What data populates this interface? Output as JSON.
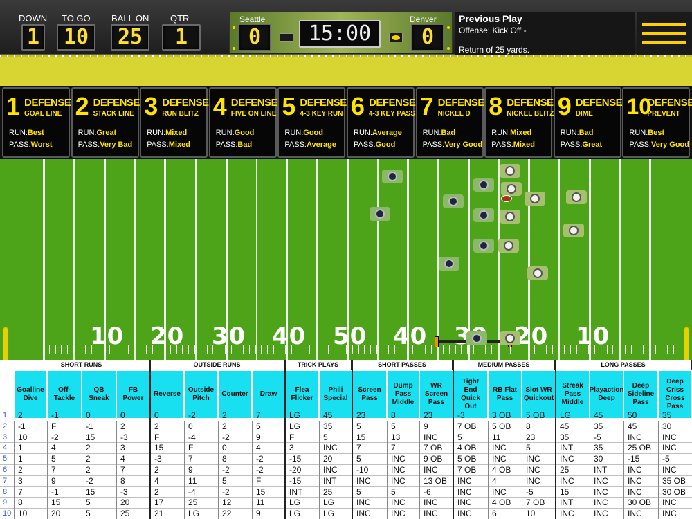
{
  "scoreboard": {
    "labels": {
      "down": "DOWN",
      "to_go": "TO GO",
      "ball_on": "BALL ON",
      "qtr": "QTR"
    },
    "values": {
      "down": "1",
      "to_go": "10",
      "ball_on": "25",
      "qtr": "1"
    },
    "home_team": "Seattle",
    "away_team": "Denver",
    "home_score": "0",
    "away_score": "0",
    "clock": "15:00"
  },
  "previous_play": {
    "title": "Previous Play",
    "line1": "Offense: Kick Off -",
    "line2": "Return of 25 yards."
  },
  "defenses": [
    {
      "num": "1",
      "title": "DEFENSE",
      "name": "GOAL LINE",
      "run_label": "RUN:",
      "run": "Best",
      "pass_label": "PASS:",
      "pass": "Worst"
    },
    {
      "num": "2",
      "title": "DEFENSE",
      "name": "STACK LINE",
      "run_label": "RUN:",
      "run": "Great",
      "pass_label": "PASS:",
      "pass": "Very Bad"
    },
    {
      "num": "3",
      "title": "DEFENSE",
      "name": "RUN BLITZ",
      "run_label": "RUN:",
      "run": "Mixed",
      "pass_label": "PASS:",
      "pass": "Mixed"
    },
    {
      "num": "4",
      "title": "DEFENSE",
      "name": "FIVE ON LINE",
      "run_label": "RUN:",
      "run": "Good",
      "pass_label": "PASS:",
      "pass": "Bad"
    },
    {
      "num": "5",
      "title": "DEFENSE",
      "name": "4-3 KEY RUN",
      "run_label": "RUN:",
      "run": "Good",
      "pass_label": "PASS:",
      "pass": "Average"
    },
    {
      "num": "6",
      "title": "DEFENSE",
      "name": "4-3 KEY PASS",
      "run_label": "RUN:",
      "run": "Average",
      "pass_label": "PASS:",
      "pass": "Good"
    },
    {
      "num": "7",
      "title": "DEFENSE",
      "name": "NICKEL D",
      "run_label": "RUN:",
      "run": "Bad",
      "pass_label": "PASS:",
      "pass": "Very Good"
    },
    {
      "num": "8",
      "title": "DEFENSE",
      "name": "NICKEL BLITZ",
      "run_label": "RUN:",
      "run": "Mixed",
      "pass_label": "PASS:",
      "pass": "Mixed"
    },
    {
      "num": "9",
      "title": "DEFENSE",
      "name": "DIME",
      "run_label": "RUN:",
      "run": "Bad",
      "pass_label": "PASS:",
      "pass": "Great"
    },
    {
      "num": "10",
      "title": "DEFENSE",
      "name": "PREVENT",
      "run_label": "RUN:",
      "run": "Best",
      "pass_label": "PASS:",
      "pass": "Very Good"
    }
  ],
  "field": {
    "yard_numbers": [
      "10",
      "20",
      "30",
      "40",
      "50",
      "40",
      "30",
      "20",
      "10"
    ]
  },
  "play_table": {
    "categories": [
      {
        "label": "SHORT RUNS",
        "span": 4
      },
      {
        "label": "OUTSIDE RUNS",
        "span": 4
      },
      {
        "label": "TRICK PLAYS",
        "span": 2
      },
      {
        "label": "SHORT PASSES",
        "span": 3
      },
      {
        "label": "MEDIUM PASSES",
        "span": 3
      },
      {
        "label": "LONG PASSES",
        "span": 4
      }
    ],
    "headers": [
      "Goalline Dive",
      "Off-Tackle",
      "QB Sneak",
      "FB Power",
      "Reverse",
      "Outside Pitch",
      "Counter",
      "Draw",
      "Flea Flicker",
      "Phili Special",
      "Screen Pass",
      "Dump Pass Middle",
      "WR Screen Pass",
      "Tight End Quick Out",
      "RB Flat Pass",
      "Slot WR Quickout",
      "Streak Pass Middle",
      "Playaction Deep",
      "Deep Sideline Pass",
      "Deep Criss Cross Pass"
    ],
    "row_numbers": [
      "1",
      "2",
      "3",
      "4",
      "5",
      "6",
      "7",
      "8",
      "9",
      "10"
    ],
    "rows": [
      [
        "2",
        "-1",
        "0",
        "0",
        "0",
        "-2",
        "2",
        "7",
        "LG",
        "45",
        "23",
        "8",
        "23",
        "-3",
        "3 OB",
        "5 OB",
        "LG",
        "45",
        "50",
        "35"
      ],
      [
        "-1",
        "F",
        "-1",
        "2",
        "2",
        "0",
        "2",
        "5",
        "LG",
        "35",
        "5",
        "5",
        "9",
        "7 OB",
        "5 OB",
        "8",
        "45",
        "35",
        "45",
        "30"
      ],
      [
        "10",
        "-2",
        "15",
        "-3",
        "F",
        "-4",
        "-2",
        "9",
        "F",
        "5",
        "15",
        "13",
        "INC",
        "5",
        "11",
        "23",
        "35",
        "-5",
        "INC",
        "INC"
      ],
      [
        "1",
        "4",
        "2",
        "3",
        "15",
        "F",
        "0",
        "4",
        "3",
        "INC",
        "7",
        "7",
        "7 OB",
        "4 OB",
        "INC",
        "5",
        "INT",
        "35",
        "25 OB",
        "INC"
      ],
      [
        "1",
        "5",
        "2",
        "4",
        "-3",
        "7",
        "8",
        "-2",
        "-15",
        "20",
        "5",
        "INC",
        "9 OB",
        "5 OB",
        "INC",
        "INC",
        "INC",
        "30",
        "-15",
        "-5"
      ],
      [
        "2",
        "7",
        "2",
        "7",
        "2",
        "9",
        "-2",
        "-2",
        "-20",
        "INC",
        "-10",
        "INC",
        "INC",
        "7 OB",
        "4 OB",
        "INC",
        "25",
        "INT",
        "INC",
        "INC"
      ],
      [
        "3",
        "9",
        "-2",
        "8",
        "4",
        "11",
        "5",
        "F",
        "-15",
        "INT",
        "INC",
        "INC",
        "13 OB",
        "INC",
        "4",
        "INC",
        "INC",
        "INC",
        "INC",
        "35 OB"
      ],
      [
        "7",
        "-1",
        "15",
        "-3",
        "2",
        "-4",
        "-2",
        "15",
        "INT",
        "25",
        "5",
        "5",
        "-6",
        "INC",
        "INC",
        "-5",
        "15",
        "INC",
        "INC",
        "30 OB"
      ],
      [
        "8",
        "15",
        "5",
        "20",
        "17",
        "25",
        "12",
        "11",
        "LG",
        "LG",
        "INC",
        "INC",
        "INC",
        "INC",
        "4 OB",
        "7 OB",
        "INT",
        "INC",
        "30 OB",
        "INC"
      ],
      [
        "10",
        "20",
        "5",
        "25",
        "21",
        "LG",
        "22",
        "9",
        "LG",
        "LG",
        "INC",
        "INC",
        "INC",
        "INC",
        "6",
        "10",
        "INC",
        "INC",
        "INC",
        "INC"
      ]
    ]
  },
  "colors": {
    "led_yellow": "#ffe030",
    "field_green": "#4da418",
    "header_cyan": "#18e0f0",
    "strip_yellow": "#d8d432"
  }
}
